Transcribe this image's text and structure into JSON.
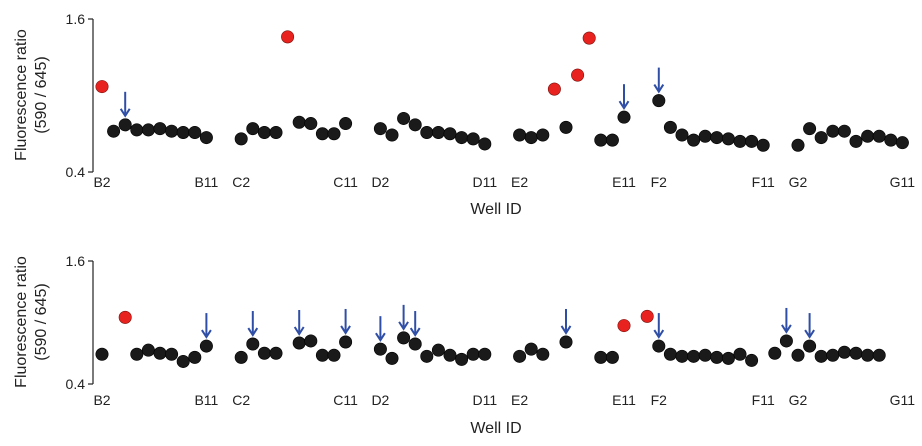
{
  "colors": {
    "normal": "#1a1a1a",
    "highlight": "#e8231f",
    "arrow": "#2f4ea6",
    "axis": "#222222"
  },
  "chart_data": [
    {
      "type": "scatter",
      "title": "",
      "ylabel_line1": "Fluorescence ratio",
      "ylabel_line2": "(590 / 645)",
      "xlabel": "Well ID",
      "ylim": [
        0.4,
        1.6
      ],
      "yticks": [
        "1.6",
        "0.4"
      ],
      "xtick_labels": [
        "B2",
        "B11",
        "C2",
        "C11",
        "D2",
        "D11",
        "E2",
        "E11",
        "F2",
        "F11",
        "G2",
        "G11"
      ],
      "xtick_index": [
        0,
        9,
        12,
        21,
        24,
        33,
        36,
        45,
        48,
        57,
        60,
        69
      ],
      "points": [
        {
          "i": 0,
          "y": 1.07,
          "hl": true
        },
        {
          "i": 1,
          "y": 0.72
        },
        {
          "i": 2,
          "y": 0.77,
          "arrow": true
        },
        {
          "i": 3,
          "y": 0.73
        },
        {
          "i": 4,
          "y": 0.73
        },
        {
          "i": 5,
          "y": 0.74
        },
        {
          "i": 6,
          "y": 0.72
        },
        {
          "i": 7,
          "y": 0.71
        },
        {
          "i": 8,
          "y": 0.71
        },
        {
          "i": 9,
          "y": 0.67
        },
        {
          "i": 12,
          "y": 0.66
        },
        {
          "i": 13,
          "y": 0.74
        },
        {
          "i": 14,
          "y": 0.71
        },
        {
          "i": 15,
          "y": 0.71
        },
        {
          "i": 16,
          "y": 1.46,
          "hl": true
        },
        {
          "i": 17,
          "y": 0.79
        },
        {
          "i": 18,
          "y": 0.78
        },
        {
          "i": 19,
          "y": 0.7
        },
        {
          "i": 20,
          "y": 0.7
        },
        {
          "i": 21,
          "y": 0.78
        },
        {
          "i": 24,
          "y": 0.74
        },
        {
          "i": 25,
          "y": 0.69
        },
        {
          "i": 26,
          "y": 0.82
        },
        {
          "i": 27,
          "y": 0.77
        },
        {
          "i": 28,
          "y": 0.71
        },
        {
          "i": 29,
          "y": 0.71
        },
        {
          "i": 30,
          "y": 0.7
        },
        {
          "i": 31,
          "y": 0.67
        },
        {
          "i": 32,
          "y": 0.66
        },
        {
          "i": 33,
          "y": 0.62
        },
        {
          "i": 36,
          "y": 0.69
        },
        {
          "i": 37,
          "y": 0.67
        },
        {
          "i": 38,
          "y": 0.69
        },
        {
          "i": 39,
          "y": 1.05,
          "hl": true
        },
        {
          "i": 40,
          "y": 0.75
        },
        {
          "i": 41,
          "y": 1.16,
          "hl": true
        },
        {
          "i": 42,
          "y": 1.45,
          "hl": true
        },
        {
          "i": 43,
          "y": 0.65
        },
        {
          "i": 44,
          "y": 0.65
        },
        {
          "i": 45,
          "y": 0.83,
          "arrow": true
        },
        {
          "i": 48,
          "y": 0.96,
          "arrow": true
        },
        {
          "i": 49,
          "y": 0.75
        },
        {
          "i": 50,
          "y": 0.69
        },
        {
          "i": 51,
          "y": 0.65
        },
        {
          "i": 52,
          "y": 0.68
        },
        {
          "i": 53,
          "y": 0.67
        },
        {
          "i": 54,
          "y": 0.66
        },
        {
          "i": 55,
          "y": 0.64
        },
        {
          "i": 56,
          "y": 0.64
        },
        {
          "i": 57,
          "y": 0.61
        },
        {
          "i": 60,
          "y": 0.61
        },
        {
          "i": 61,
          "y": 0.74
        },
        {
          "i": 62,
          "y": 0.67
        },
        {
          "i": 63,
          "y": 0.72
        },
        {
          "i": 64,
          "y": 0.72
        },
        {
          "i": 65,
          "y": 0.64
        },
        {
          "i": 66,
          "y": 0.68
        },
        {
          "i": 67,
          "y": 0.68
        },
        {
          "i": 68,
          "y": 0.65
        },
        {
          "i": 69,
          "y": 0.63
        }
      ]
    },
    {
      "type": "scatter",
      "title": "",
      "ylabel_line1": "Fluorescence ratio",
      "ylabel_line2": "(590 / 645)",
      "xlabel": "Well ID",
      "ylim": [
        0.4,
        1.6
      ],
      "yticks": [
        "1.6",
        "0.4"
      ],
      "xtick_labels": [
        "B2",
        "B11",
        "C2",
        "C11",
        "D2",
        "D11",
        "E2",
        "E11",
        "F2",
        "F11",
        "G2",
        "G11"
      ],
      "xtick_index": [
        0,
        9,
        12,
        21,
        24,
        33,
        36,
        45,
        48,
        57,
        60,
        69
      ],
      "points": [
        {
          "i": 0,
          "y": 0.69
        },
        {
          "i": 2,
          "y": 1.05,
          "hl": true
        },
        {
          "i": 3,
          "y": 0.69
        },
        {
          "i": 4,
          "y": 0.73
        },
        {
          "i": 5,
          "y": 0.7
        },
        {
          "i": 6,
          "y": 0.69
        },
        {
          "i": 7,
          "y": 0.62
        },
        {
          "i": 8,
          "y": 0.66
        },
        {
          "i": 9,
          "y": 0.77,
          "arrow": true
        },
        {
          "i": 12,
          "y": 0.66
        },
        {
          "i": 13,
          "y": 0.79,
          "arrow": true
        },
        {
          "i": 14,
          "y": 0.7
        },
        {
          "i": 15,
          "y": 0.7
        },
        {
          "i": 17,
          "y": 0.8,
          "arrow": true
        },
        {
          "i": 18,
          "y": 0.82
        },
        {
          "i": 19,
          "y": 0.68
        },
        {
          "i": 20,
          "y": 0.68
        },
        {
          "i": 21,
          "y": 0.81,
          "arrow": true
        },
        {
          "i": 24,
          "y": 0.74,
          "arrow": true
        },
        {
          "i": 25,
          "y": 0.65
        },
        {
          "i": 26,
          "y": 0.85,
          "arrow": true
        },
        {
          "i": 27,
          "y": 0.79,
          "arrow": true
        },
        {
          "i": 28,
          "y": 0.67
        },
        {
          "i": 29,
          "y": 0.73
        },
        {
          "i": 30,
          "y": 0.68
        },
        {
          "i": 31,
          "y": 0.64
        },
        {
          "i": 32,
          "y": 0.69
        },
        {
          "i": 33,
          "y": 0.69
        },
        {
          "i": 36,
          "y": 0.67
        },
        {
          "i": 37,
          "y": 0.74
        },
        {
          "i": 38,
          "y": 0.69
        },
        {
          "i": 40,
          "y": 0.81,
          "arrow": true
        },
        {
          "i": 43,
          "y": 0.66
        },
        {
          "i": 44,
          "y": 0.66
        },
        {
          "i": 45,
          "y": 0.97,
          "hl": true
        },
        {
          "i": 47,
          "y": 1.06,
          "hl": true
        },
        {
          "i": 48,
          "y": 0.77,
          "arrow": true
        },
        {
          "i": 49,
          "y": 0.69
        },
        {
          "i": 50,
          "y": 0.67
        },
        {
          "i": 51,
          "y": 0.67
        },
        {
          "i": 52,
          "y": 0.68
        },
        {
          "i": 53,
          "y": 0.66
        },
        {
          "i": 54,
          "y": 0.65
        },
        {
          "i": 55,
          "y": 0.69
        },
        {
          "i": 56,
          "y": 0.63
        },
        {
          "i": 58,
          "y": 0.7
        },
        {
          "i": 59,
          "y": 0.82,
          "arrow": true
        },
        {
          "i": 60,
          "y": 0.68
        },
        {
          "i": 61,
          "y": 0.77,
          "arrow": true
        },
        {
          "i": 62,
          "y": 0.67
        },
        {
          "i": 63,
          "y": 0.68
        },
        {
          "i": 64,
          "y": 0.71
        },
        {
          "i": 65,
          "y": 0.7
        },
        {
          "i": 66,
          "y": 0.68
        },
        {
          "i": 67,
          "y": 0.68
        }
      ]
    }
  ]
}
